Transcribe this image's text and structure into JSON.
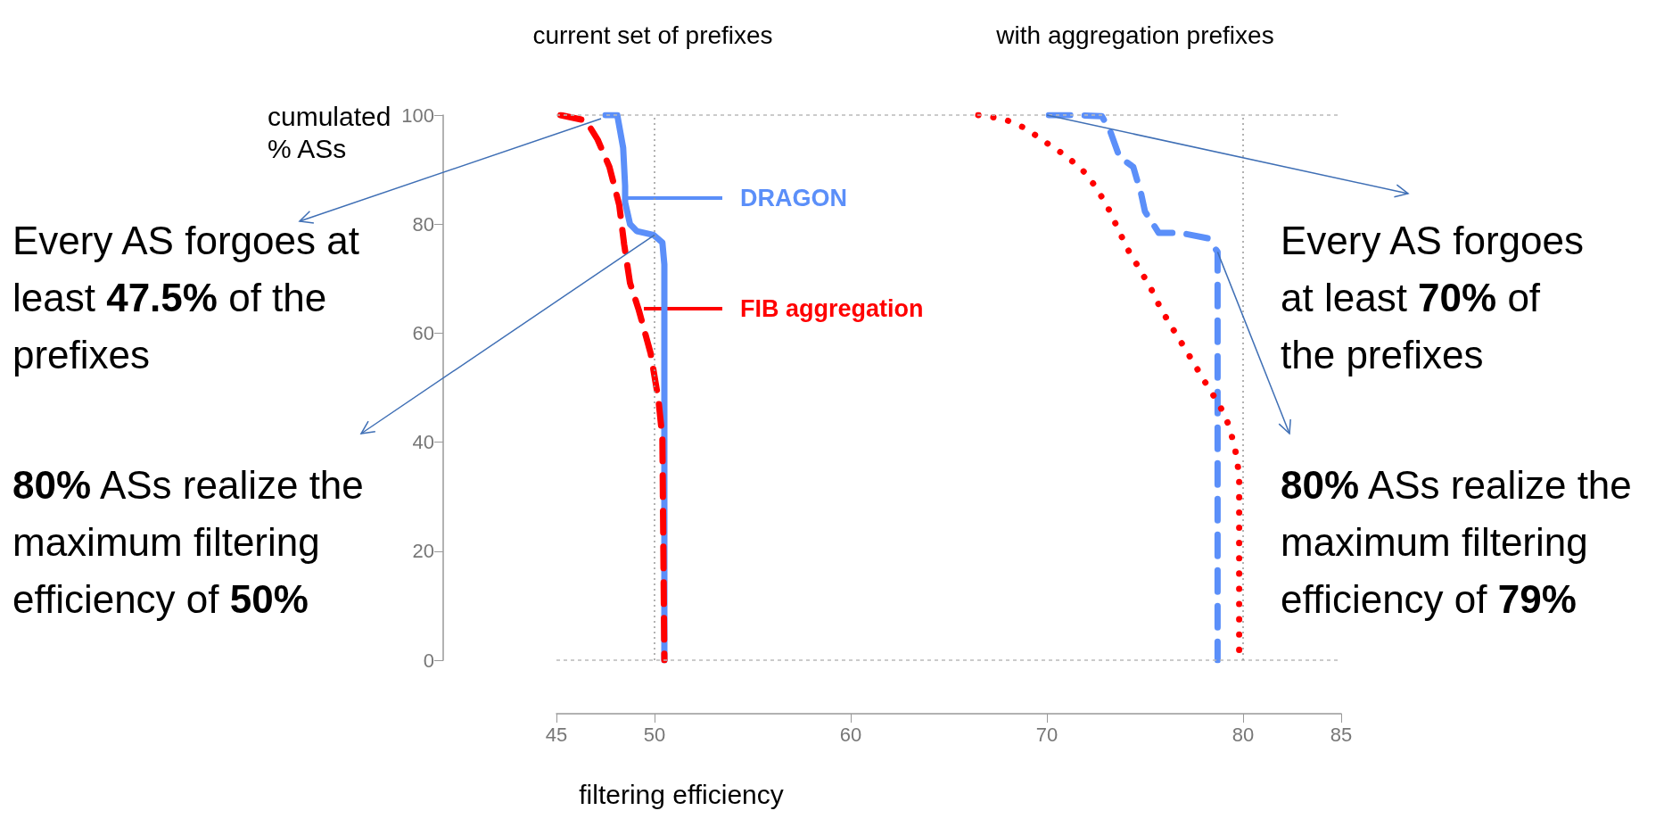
{
  "chart_data": {
    "type": "line",
    "xlabel": "filtering efficiency",
    "ylabel": "cumulated\n% ASs",
    "xlim": [
      45,
      85
    ],
    "xticks": [
      45,
      50,
      60,
      70,
      80,
      85
    ],
    "ylim": [
      0,
      100
    ],
    "yticks": [
      0,
      20,
      40,
      60,
      80,
      100
    ],
    "grid": false,
    "legend": "top",
    "marker": "none",
    "series": [
      {
        "name": "DRAGON",
        "color": "#5b8ff9",
        "line_style": "solid",
        "x": [
          47.5,
          48.1,
          48.4,
          48.5,
          48.5,
          48.75,
          49.1,
          49.95,
          50.4,
          50.5,
          50.5
        ],
        "values": [
          100,
          100,
          94,
          87,
          84,
          80,
          78.7,
          78,
          76.6,
          72.6,
          0
        ]
      },
      {
        "name": "FIB aggregation",
        "color": "#ff0000",
        "line_style": "dashed",
        "x": [
          45.2,
          46.5,
          47.1,
          47.7,
          48.2,
          48.45,
          48.75,
          49.2,
          49.8,
          50.2,
          50.4,
          50.5
        ],
        "values": [
          100,
          99,
          95.5,
          90.5,
          83.5,
          76.3,
          69.2,
          64.2,
          56.3,
          47.8,
          40.7,
          0
        ]
      },
      {
        "color": "#5b8ff9",
        "line_style": "dashed",
        "x": [
          70.1,
          71.3,
          72.8,
          73.2,
          73.7,
          74.4,
          74.8,
          75.0,
          75.7,
          76.8,
          78.2,
          78.7,
          78.7
        ],
        "values": [
          100,
          100,
          99.8,
          97.3,
          92.3,
          90.5,
          85.6,
          82.3,
          78.4,
          78.4,
          77.4,
          74.9,
          0
        ]
      },
      {
        "color": "#ff0000",
        "line_style": "dotted",
        "x": [
          66.5,
          67.8,
          68.9,
          69.9,
          70.9,
          71.8,
          72.5,
          73.1,
          73.6,
          74.1,
          74.7,
          75.3,
          75.8,
          76.4,
          77.0,
          77.6,
          78.2,
          78.8,
          79.3,
          79.6,
          79.8,
          79.8,
          79.8,
          79.8,
          79.8,
          79.8,
          79.8,
          79.8
        ],
        "values": [
          100,
          99.3,
          97.6,
          95.1,
          92.7,
          90,
          86.8,
          83.1,
          79.3,
          75.5,
          71.9,
          68.2,
          64.5,
          60.9,
          57.4,
          53.8,
          50.2,
          46.8,
          42.9,
          38.6,
          34,
          29.3,
          24.5,
          19.7,
          14.9,
          10.2,
          5.5,
          0
        ]
      }
    ],
    "ref_lines": [
      {
        "axis": "y",
        "value": 100,
        "color": "#bbbbbb",
        "line_style": "dashed"
      },
      {
        "axis": "y",
        "value": 0,
        "color": "#bbbbbb",
        "line_style": "dashed"
      },
      {
        "axis": "x",
        "value": 50,
        "color": "#999999",
        "line_style": "dotted"
      },
      {
        "axis": "x",
        "value": 80,
        "color": "#999999",
        "line_style": "dotted"
      }
    ],
    "annotations": [
      "current set of prefixes",
      "with aggregation prefixes",
      "Every AS forgoes at\nleast 47.5% of the\nprefixes",
      {
        "text": "80% ASs realize the\nmaximum filtering\nefficiency of 50%",
        "x": 50,
        "y": 78
      },
      {
        "text": "Every AS forgoes\nat least 70% of\nthe prefixes",
        "x": 70,
        "y": 100
      },
      {
        "text": "80% ASs realize the\nmaximum filtering\nefficiency of 79%",
        "x": 78.7,
        "y": 74.9
      }
    ]
  }
}
